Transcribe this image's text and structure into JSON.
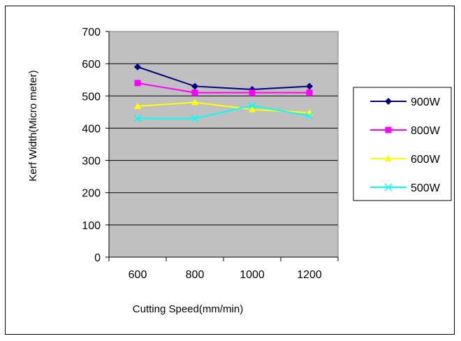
{
  "chart_data": {
    "type": "line",
    "title": "",
    "xlabel": "Cutting Speed(mm/min)",
    "ylabel": "Kerf Width(Micro meter)",
    "categories": [
      "600",
      "800",
      "1000",
      "1200"
    ],
    "ylim": [
      0,
      700
    ],
    "yticks": [
      0,
      100,
      200,
      300,
      400,
      500,
      600,
      700
    ],
    "grid": true,
    "legend_position": "right",
    "plot_background": "#c0c0c0",
    "series": [
      {
        "name": "900W",
        "values": [
          590,
          530,
          520,
          530
        ],
        "color": "#000080",
        "marker": "diamond"
      },
      {
        "name": "800W",
        "values": [
          540,
          510,
          510,
          510
        ],
        "color": "#ff00ff",
        "marker": "square"
      },
      {
        "name": "600W",
        "values": [
          468,
          480,
          458,
          448
        ],
        "color": "#ffff00",
        "marker": "triangle"
      },
      {
        "name": "500W",
        "values": [
          430,
          430,
          470,
          438
        ],
        "color": "#00ffff",
        "marker": "x"
      }
    ]
  }
}
